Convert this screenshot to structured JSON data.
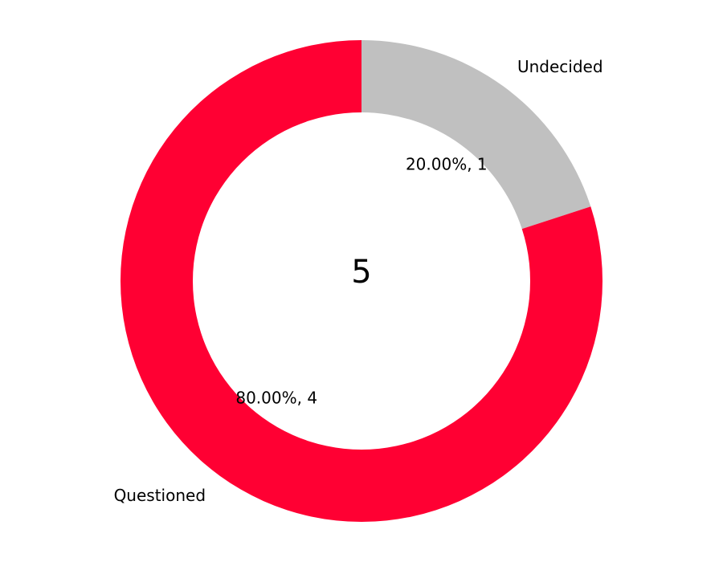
{
  "chart_data": {
    "type": "pie",
    "variant": "donut",
    "center_label": "5",
    "slices": [
      {
        "label": "Undecided",
        "value": 1,
        "percent_label": "20.00%, 1",
        "color": "#C0C0C0"
      },
      {
        "label": "Questioned",
        "value": 4,
        "percent_label": "80.00%, 4",
        "color": "#FF0033"
      }
    ],
    "start_angle": "12 o'clock",
    "direction": "clockwise",
    "legend": "none"
  }
}
